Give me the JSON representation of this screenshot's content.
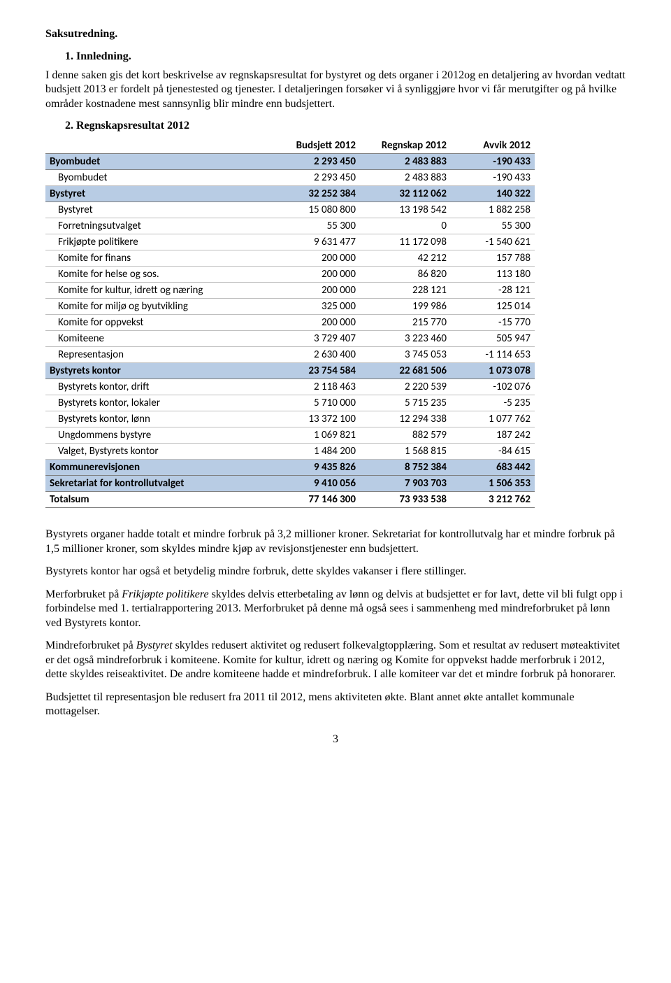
{
  "doc": {
    "title": "Saksutredning.",
    "sec1_heading": "1.  Innledning.",
    "sec1_text": "I denne saken gis det kort beskrivelse av regnskapsresultat for bystyret og dets organer i 2012og en detaljering av hvordan vedtatt budsjett 2013 er fordelt på tjenestested og tjenester. I detaljeringen forsøker vi å synliggjøre hvor vi får merutgifter og på hvilke områder kostnadene mest sannsynlig blir mindre enn budsjettert.",
    "sec2_heading": "2.  Regnskapsresultat 2012",
    "narrative": {
      "p1": "Bystyrets organer hadde totalt et mindre forbruk på 3,2 millioner kroner. Sekretariat for kontrollutvalg har et mindre forbruk på 1,5 millioner kroner, som skyldes mindre kjøp av revisjonstjenester enn budsjettert.",
      "p2": "Bystyrets kontor har også et betydelig mindre forbruk, dette skyldes vakanser i flere stillinger.",
      "p3a": "Merforbruket på ",
      "p3_em": "Frikjøpte politikere",
      "p3b": " skyldes delvis etterbetaling av lønn og delvis at budsjettet er for lavt, dette vil bli fulgt opp i forbindelse med 1. tertialrapportering 2013. Merforbruket på denne må også sees i sammenheng med mindreforbruket på lønn ved Bystyrets kontor.",
      "p4a": "Mindreforbruket på ",
      "p4_em": "Bystyret",
      "p4b": " skyldes redusert aktivitet og redusert folkevalgtopplæring. Som et resultat av redusert møteaktivitet er det også mindreforbruk i komiteene. Komite for kultur, idrett og næring og Komite for oppvekst hadde merforbruk i 2012, dette skyldes reiseaktivitet. De andre komiteene hadde et mindreforbruk. I alle komiteer var det et mindre forbruk på honorarer.",
      "p5": "Budsjettet til representasjon ble redusert fra 2011 til 2012, mens aktiviteten økte. Blant annet økte antallet kommunale mottagelser."
    },
    "pagenum": "3"
  },
  "table": {
    "header": {
      "label": "",
      "budget": "Budsjett 2012",
      "actual": "Regnskap 2012",
      "variance": "Avvik 2012"
    },
    "colors": {
      "highlight_bg": "#b8cce4",
      "border": "#7f7f7f",
      "row_border": "#bfbfbf"
    },
    "rows": [
      {
        "type": "section",
        "highlight": true,
        "indent": false,
        "label": "Byombudet",
        "budget": "2 293 450",
        "actual": "2 483 883",
        "variance": "-190 433"
      },
      {
        "type": "detail",
        "highlight": false,
        "indent": true,
        "label": "Byombudet",
        "budget": "2 293 450",
        "actual": "2 483 883",
        "variance": "-190 433"
      },
      {
        "type": "section",
        "highlight": true,
        "indent": false,
        "label": "Bystyret",
        "budget": "32 252 384",
        "actual": "32 112 062",
        "variance": "140 322"
      },
      {
        "type": "detail",
        "highlight": false,
        "indent": true,
        "label": "Bystyret",
        "budget": "15 080 800",
        "actual": "13 198 542",
        "variance": "1 882 258"
      },
      {
        "type": "detail",
        "highlight": false,
        "indent": true,
        "label": "Forretningsutvalget",
        "budget": "55 300",
        "actual": "0",
        "variance": "55 300"
      },
      {
        "type": "detail",
        "highlight": false,
        "indent": true,
        "label": "Frikjøpte politikere",
        "budget": "9 631 477",
        "actual": "11 172 098",
        "variance": "-1 540 621"
      },
      {
        "type": "detail",
        "highlight": false,
        "indent": true,
        "label": "Komite for finans",
        "budget": "200 000",
        "actual": "42 212",
        "variance": "157 788"
      },
      {
        "type": "detail",
        "highlight": false,
        "indent": true,
        "label": "Komite for helse og sos.",
        "budget": "200 000",
        "actual": "86 820",
        "variance": "113 180"
      },
      {
        "type": "detail",
        "highlight": false,
        "indent": true,
        "label": "Komite for kultur, idrett og næring",
        "budget": "200 000",
        "actual": "228 121",
        "variance": "-28 121"
      },
      {
        "type": "detail",
        "highlight": false,
        "indent": true,
        "label": "Komite for miljø og byutvikling",
        "budget": "325 000",
        "actual": "199 986",
        "variance": "125 014"
      },
      {
        "type": "detail",
        "highlight": false,
        "indent": true,
        "label": "Komite for oppvekst",
        "budget": "200 000",
        "actual": "215 770",
        "variance": "-15 770"
      },
      {
        "type": "detail",
        "highlight": false,
        "indent": true,
        "label": "Komiteene",
        "budget": "3 729 407",
        "actual": "3 223 460",
        "variance": "505 947"
      },
      {
        "type": "detail",
        "highlight": false,
        "indent": true,
        "label": "Representasjon",
        "budget": "2 630 400",
        "actual": "3 745 053",
        "variance": "-1 114 653"
      },
      {
        "type": "section",
        "highlight": true,
        "indent": false,
        "label": "Bystyrets kontor",
        "budget": "23 754 584",
        "actual": "22 681 506",
        "variance": "1 073 078"
      },
      {
        "type": "detail",
        "highlight": false,
        "indent": true,
        "label": "Bystyrets kontor, drift",
        "budget": "2 118 463",
        "actual": "2 220 539",
        "variance": "-102 076"
      },
      {
        "type": "detail",
        "highlight": false,
        "indent": true,
        "label": "Bystyrets kontor, lokaler",
        "budget": "5 710 000",
        "actual": "5 715 235",
        "variance": "-5 235"
      },
      {
        "type": "detail",
        "highlight": false,
        "indent": true,
        "label": "Bystyrets kontor, lønn",
        "budget": "13 372 100",
        "actual": "12 294 338",
        "variance": "1 077 762"
      },
      {
        "type": "detail",
        "highlight": false,
        "indent": true,
        "label": "Ungdommens bystyre",
        "budget": "1 069 821",
        "actual": "882 579",
        "variance": "187 242"
      },
      {
        "type": "detail",
        "highlight": false,
        "indent": true,
        "label": "Valget, Bystyrets kontor",
        "budget": "1 484 200",
        "actual": "1 568 815",
        "variance": "-84 615"
      },
      {
        "type": "section",
        "highlight": true,
        "indent": false,
        "label": "Kommunerevisjonen",
        "budget": "9 435 826",
        "actual": "8 752 384",
        "variance": "683 442"
      },
      {
        "type": "section",
        "highlight": true,
        "indent": false,
        "label": "Sekretariat for kontrollutvalget",
        "budget": "9 410 056",
        "actual": "7 903 703",
        "variance": "1 506 353"
      },
      {
        "type": "total",
        "highlight": false,
        "indent": false,
        "label": "Totalsum",
        "budget": "77 146 300",
        "actual": "73 933 538",
        "variance": "3 212 762"
      }
    ]
  }
}
